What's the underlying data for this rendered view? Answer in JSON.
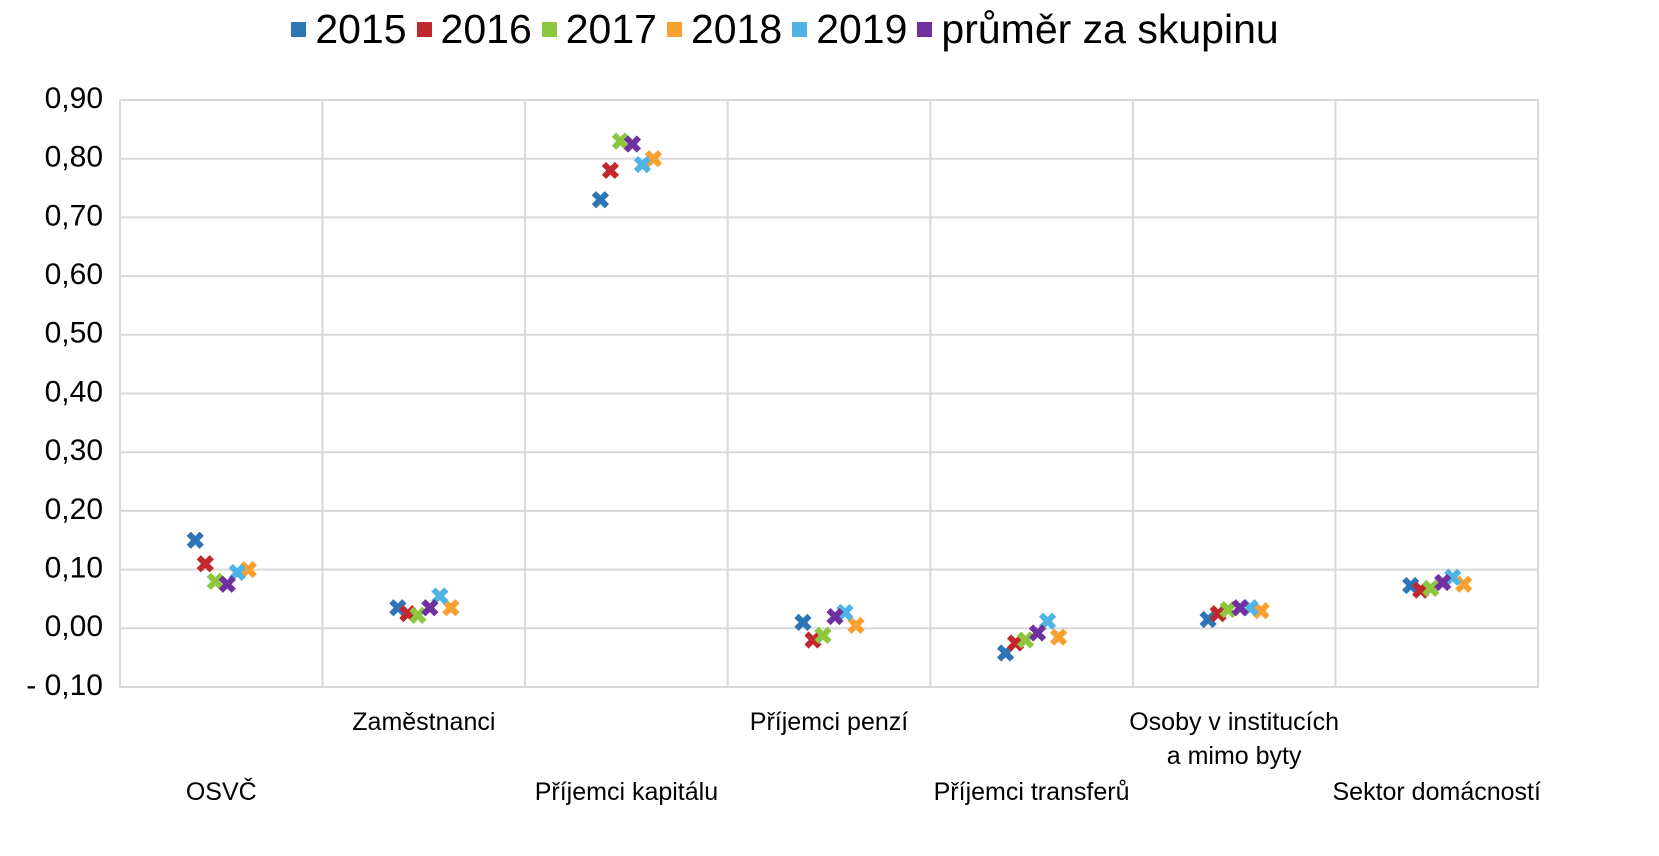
{
  "chart_data": {
    "type": "scatter",
    "categories": [
      "OSVČ",
      "Zaměstnanci",
      "Příjemci kapitálu",
      "Příjemci penzí",
      "Příjemci transferů",
      "Osoby v institucích\na mimo byty",
      "Sektor domácností"
    ],
    "series": [
      {
        "name": "2015",
        "color": "#2e75b6",
        "values": [
          0.15,
          0.035,
          0.73,
          0.01,
          -0.042,
          0.015,
          0.073
        ]
      },
      {
        "name": "2016",
        "color": "#c0282d",
        "values": [
          0.11,
          0.025,
          0.78,
          -0.02,
          -0.025,
          0.025,
          0.065
        ]
      },
      {
        "name": "2017",
        "color": "#8dc63f",
        "values": [
          0.08,
          0.022,
          0.83,
          -0.012,
          -0.02,
          0.032,
          0.068
        ]
      },
      {
        "name": "2018",
        "color": "#f9a030",
        "values": [
          0.1,
          0.035,
          0.8,
          0.005,
          -0.015,
          0.03,
          0.075
        ]
      },
      {
        "name": "2019",
        "color": "#4fb3e6",
        "values": [
          0.095,
          0.055,
          0.79,
          0.027,
          0.012,
          0.035,
          0.087
        ]
      },
      {
        "name": "průměr za skupinu",
        "color": "#7030a0",
        "values": [
          0.075,
          0.035,
          0.825,
          0.02,
          -0.008,
          0.035,
          0.078
        ]
      }
    ],
    "ylim": [
      -0.1,
      0.9
    ],
    "yticks": [
      {
        "value": -0.1,
        "label": "- 0,10"
      },
      {
        "value": 0,
        "label": "0,00"
      },
      {
        "value": 0.1,
        "label": "0,10"
      },
      {
        "value": 0.2,
        "label": "0,20"
      },
      {
        "value": 0.3,
        "label": "0,30"
      },
      {
        "value": 0.4,
        "label": "0,40"
      },
      {
        "value": 0.5,
        "label": "0,50"
      },
      {
        "value": 0.6,
        "label": "0,60"
      },
      {
        "value": 0.7,
        "label": "0,70"
      },
      {
        "value": 0.8,
        "label": "0,80"
      },
      {
        "value": 0.9,
        "label": "0,90"
      }
    ],
    "grid": true,
    "legend": "top"
  }
}
